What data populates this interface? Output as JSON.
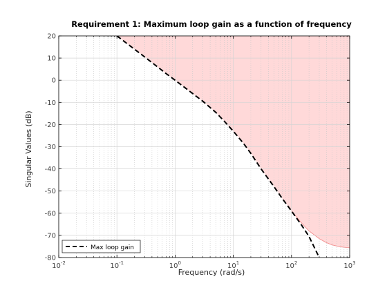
{
  "chart_data": {
    "type": "line",
    "title": "Requirement 1: Maximum loop gain as a function of frequency",
    "xlabel": "Frequency (rad/s)",
    "ylabel": "Singular Values (dB)",
    "xscale": "log",
    "xlim": [
      0.01,
      1000
    ],
    "ylim": [
      -80,
      20
    ],
    "x_ticks": [
      {
        "base": "10",
        "exp": "-2",
        "value": 0.01
      },
      {
        "base": "10",
        "exp": "-1",
        "value": 0.1
      },
      {
        "base": "10",
        "exp": "0",
        "value": 1
      },
      {
        "base": "10",
        "exp": "1",
        "value": 10
      },
      {
        "base": "10",
        "exp": "2",
        "value": 100
      },
      {
        "base": "10",
        "exp": "3",
        "value": 1000
      }
    ],
    "y_ticks": [
      "20",
      "10",
      "0",
      "-10",
      "-20",
      "-30",
      "-40",
      "-50",
      "-60",
      "-70",
      "-80"
    ],
    "y_tick_values": [
      20,
      10,
      0,
      -10,
      -20,
      -30,
      -40,
      -50,
      -60,
      -70,
      -80
    ],
    "grid": true,
    "legend": {
      "position": "bottom-left",
      "entries": [
        "Max loop gain"
      ]
    },
    "shaded_region": {
      "description_color": "#ffd9d9",
      "boundary_color": "#f08080"
    },
    "series": [
      {
        "name": "Max loop gain",
        "style": "dashed",
        "color": "#000000",
        "x": [
          0.1,
          0.15,
          0.2,
          0.3,
          0.5,
          0.7,
          1,
          1.5,
          2,
          3,
          5,
          7,
          10,
          15,
          20,
          30,
          50,
          70,
          100,
          150,
          200,
          300
        ],
        "y": [
          20,
          16.5,
          14,
          10.5,
          6,
          3,
          0,
          -3.5,
          -6,
          -9.5,
          -14.5,
          -18.5,
          -23,
          -28.5,
          -33,
          -40,
          -48,
          -53.5,
          -59,
          -65.5,
          -70.5,
          -80
        ]
      }
    ],
    "region_boundary": {
      "x": [
        100,
        150,
        200,
        300,
        400,
        500,
        700,
        1000
      ],
      "y": [
        -59,
        -64.5,
        -68,
        -71.5,
        -73.3,
        -74.3,
        -75.2,
        -75.6
      ]
    }
  },
  "colors": {
    "fill": "#ffd9d9",
    "axis": "#000000",
    "grid_major": "#d4d4d4",
    "grid_minor": "#c8c8c8",
    "tick_label": "#404040"
  }
}
